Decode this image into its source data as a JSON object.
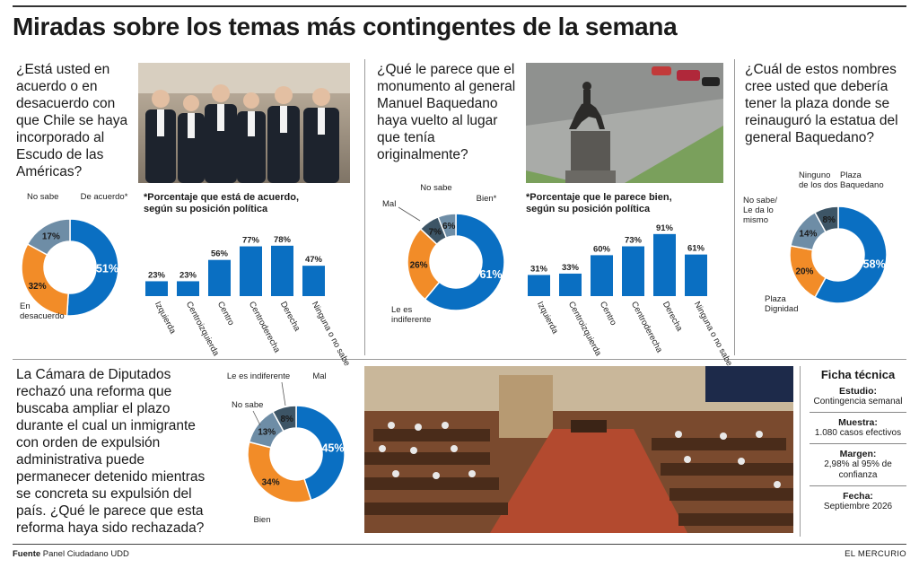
{
  "headline": "Miradas sobre los temas más contingentes de la semana",
  "colors": {
    "blue": "#0a6fc2",
    "orange": "#f28c28",
    "slate": "#6e8da6",
    "dark": "#3d5566"
  },
  "footer": {
    "source_label": "Fuente",
    "source_value": "Panel Ciudadano UDD",
    "brand": "EL MERCURIO"
  },
  "ficha": {
    "title": "Ficha técnica",
    "items": [
      {
        "label": "Estudio:",
        "value": "Contingencia semanal"
      },
      {
        "label": "Muestra:",
        "value": "1.080 casos efectivos"
      },
      {
        "label": "Margen:",
        "value": "2,98% al 95% de confianza"
      },
      {
        "label": "Fecha:",
        "value": "Septiembre 2026"
      }
    ]
  },
  "chart_data": [
    {
      "type": "pie",
      "question": "¿Está usted en acuerdo o en desacuerdo con que Chile se haya incorporado al Escudo de las Américas?",
      "slices": [
        {
          "label": "De acuerdo*",
          "value": 51,
          "color": "#0a6fc2"
        },
        {
          "label": "En desacuerdo",
          "value": 32,
          "color": "#f28c28"
        },
        {
          "label": "No sabe",
          "value": 17,
          "color": "#6e8da6"
        }
      ]
    },
    {
      "type": "bar",
      "title": "*Porcentaje que está de acuerdo, según su posición política",
      "categories": [
        "Izquierda",
        "Centroizquierda",
        "Centro",
        "Centroderecha",
        "Derecha",
        "Ninguna o no sabe"
      ],
      "values": [
        23,
        23,
        56,
        77,
        78,
        47
      ],
      "value_labels": [
        "23%",
        "23%",
        "56%",
        "77%",
        "78%",
        "47%"
      ],
      "ylim": [
        0,
        100
      ]
    },
    {
      "type": "pie",
      "question": "¿Qué le parece que el monumento al general Manuel Baquedano haya vuelto al lugar que tenía originalmente?",
      "slices": [
        {
          "label": "Bien*",
          "value": 61,
          "color": "#0a6fc2"
        },
        {
          "label": "Le es indiferente",
          "value": 26,
          "color": "#f28c28"
        },
        {
          "label": "Mal",
          "value": 7,
          "color": "#3d5566"
        },
        {
          "label": "No sabe",
          "value": 6,
          "color": "#6e8da6"
        }
      ]
    },
    {
      "type": "bar",
      "title": "*Porcentaje que le parece bien, según su posición política",
      "categories": [
        "Izquierda",
        "Centroizquierda",
        "Centro",
        "Centroderecha",
        "Derecha",
        "Ninguna o no sabe"
      ],
      "values": [
        31,
        33,
        60,
        73,
        91,
        61
      ],
      "value_labels": [
        "31%",
        "33%",
        "60%",
        "73%",
        "91%",
        "61%"
      ],
      "ylim": [
        0,
        100
      ]
    },
    {
      "type": "pie",
      "question": "¿Cuál de estos nombres cree usted que debería tener la plaza donde se reinauguró la estatua del general Baquedano?",
      "slices": [
        {
          "label": "Plaza Baquedano",
          "value": 58,
          "color": "#0a6fc2"
        },
        {
          "label": "Plaza Dignidad",
          "value": 20,
          "color": "#f28c28"
        },
        {
          "label": "No sabe/ Le da lo mismo",
          "value": 14,
          "color": "#6e8da6"
        },
        {
          "label": "Ninguno de los dos",
          "value": 8,
          "color": "#3d5566"
        }
      ]
    },
    {
      "type": "pie",
      "question": "La Cámara de Diputados rechazó una reforma que buscaba ampliar el plazo durante el cual un inmigrante con orden de expulsión administrativa puede permanecer detenido mientras se concreta su expulsión del país. ¿Qué le parece que esta reforma haya sido rechazada?",
      "slices": [
        {
          "label": "Mal",
          "value": 45,
          "color": "#0a6fc2"
        },
        {
          "label": "Bien",
          "value": 34,
          "color": "#f28c28"
        },
        {
          "label": "No sabe",
          "value": 13,
          "color": "#6e8da6"
        },
        {
          "label": "Le es indiferente",
          "value": 8,
          "color": "#3d5566"
        }
      ]
    }
  ]
}
